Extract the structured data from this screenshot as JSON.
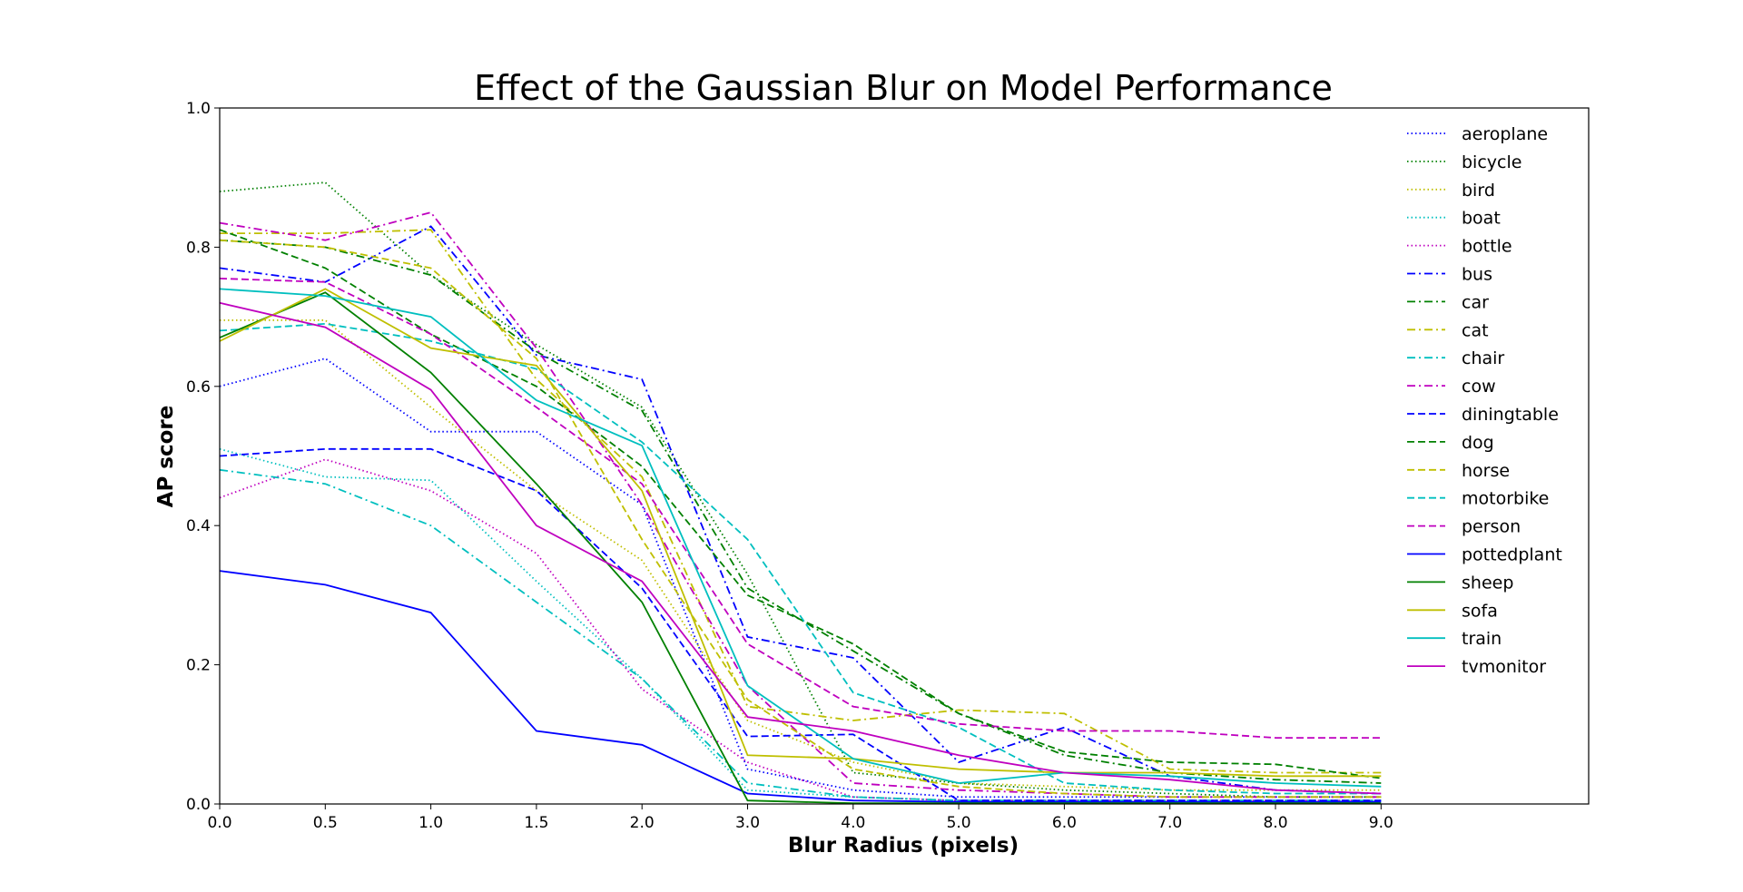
{
  "chart_data": {
    "type": "line",
    "title": "Effect of the Gaussian Blur on Model Performance",
    "xlabel": "Blur Radius (pixels)",
    "ylabel": "AP score",
    "x": [
      0.0,
      0.5,
      1.0,
      1.5,
      2.0,
      3.0,
      4.0,
      5.0,
      6.0,
      7.0,
      8.0,
      9.0
    ],
    "x_tick_labels": [
      "0.0",
      "0.5",
      "1.0",
      "1.5",
      "2.0",
      "3.0",
      "4.0",
      "5.0",
      "6.0",
      "7.0",
      "8.0",
      "9.0"
    ],
    "ylim": [
      0.0,
      1.0
    ],
    "y_ticks": [
      "0.0",
      "0.2",
      "0.4",
      "0.6",
      "0.8",
      "1.0"
    ],
    "grid": false,
    "legend_position": "top-right",
    "series": [
      {
        "name": "aeroplane",
        "color": "#0000ff",
        "style": "dotted",
        "values": [
          0.6,
          0.64,
          0.535,
          0.535,
          0.43,
          0.05,
          0.02,
          0.01,
          0.01,
          0.01,
          0.01,
          0.01
        ]
      },
      {
        "name": "bicycle",
        "color": "#008000",
        "style": "dotted",
        "values": [
          0.88,
          0.893,
          0.76,
          0.66,
          0.57,
          0.33,
          0.045,
          0.03,
          0.02,
          0.015,
          0.01,
          0.01
        ]
      },
      {
        "name": "bird",
        "color": "#bfbf00",
        "style": "dotted",
        "values": [
          0.695,
          0.695,
          0.57,
          0.45,
          0.35,
          0.12,
          0.06,
          0.03,
          0.025,
          0.02,
          0.02,
          0.02
        ]
      },
      {
        "name": "boat",
        "color": "#00bfbf",
        "style": "dotted",
        "values": [
          0.51,
          0.47,
          0.465,
          0.32,
          0.18,
          0.02,
          0.01,
          0.005,
          0.005,
          0.005,
          0.005,
          0.005
        ]
      },
      {
        "name": "bottle",
        "color": "#bf00bf",
        "style": "dotted",
        "values": [
          0.44,
          0.495,
          0.45,
          0.36,
          0.165,
          0.06,
          0.01,
          0.005,
          0.005,
          0.005,
          0.005,
          0.005
        ]
      },
      {
        "name": "bus",
        "color": "#0000ff",
        "style": "dashdot",
        "values": [
          0.77,
          0.75,
          0.83,
          0.645,
          0.61,
          0.24,
          0.21,
          0.06,
          0.11,
          0.04,
          0.02,
          0.015
        ]
      },
      {
        "name": "car",
        "color": "#008000",
        "style": "dashdot",
        "values": [
          0.81,
          0.8,
          0.76,
          0.65,
          0.565,
          0.31,
          0.22,
          0.13,
          0.07,
          0.045,
          0.035,
          0.03
        ]
      },
      {
        "name": "cat",
        "color": "#bfbf00",
        "style": "dashdot",
        "values": [
          0.82,
          0.82,
          0.825,
          0.61,
          0.47,
          0.14,
          0.12,
          0.135,
          0.13,
          0.05,
          0.045,
          0.045
        ]
      },
      {
        "name": "chair",
        "color": "#00bfbf",
        "style": "dashdot",
        "values": [
          0.48,
          0.46,
          0.4,
          0.29,
          0.18,
          0.03,
          0.01,
          0.005,
          0.005,
          0.005,
          0.005,
          0.005
        ]
      },
      {
        "name": "cow",
        "color": "#bf00bf",
        "style": "dashdot",
        "values": [
          0.835,
          0.81,
          0.85,
          0.655,
          0.43,
          0.17,
          0.03,
          0.02,
          0.015,
          0.01,
          0.01,
          0.01
        ]
      },
      {
        "name": "diningtable",
        "color": "#0000ff",
        "style": "dashed",
        "values": [
          0.5,
          0.51,
          0.51,
          0.45,
          0.31,
          0.097,
          0.1,
          0.005,
          0.005,
          0.005,
          0.005,
          0.005
        ]
      },
      {
        "name": "dog",
        "color": "#008000",
        "style": "dashed",
        "values": [
          0.825,
          0.77,
          0.675,
          0.6,
          0.485,
          0.3,
          0.23,
          0.13,
          0.075,
          0.06,
          0.057,
          0.037
        ]
      },
      {
        "name": "horse",
        "color": "#bfbf00",
        "style": "dashed",
        "values": [
          0.81,
          0.8,
          0.77,
          0.64,
          0.38,
          0.15,
          0.05,
          0.025,
          0.015,
          0.01,
          0.01,
          0.01
        ]
      },
      {
        "name": "motorbike",
        "color": "#00bfbf",
        "style": "dashed",
        "values": [
          0.68,
          0.69,
          0.665,
          0.625,
          0.52,
          0.38,
          0.16,
          0.11,
          0.03,
          0.02,
          0.015,
          0.015
        ]
      },
      {
        "name": "person",
        "color": "#bf00bf",
        "style": "dashed",
        "values": [
          0.755,
          0.75,
          0.675,
          0.57,
          0.46,
          0.23,
          0.14,
          0.115,
          0.105,
          0.105,
          0.095,
          0.095
        ]
      },
      {
        "name": "pottedplant",
        "color": "#0000ff",
        "style": "solid",
        "values": [
          0.335,
          0.315,
          0.275,
          0.105,
          0.085,
          0.015,
          0.005,
          0.003,
          0.003,
          0.003,
          0.003,
          0.003
        ]
      },
      {
        "name": "sheep",
        "color": "#008000",
        "style": "solid",
        "values": [
          0.67,
          0.735,
          0.62,
          0.46,
          0.29,
          0.005,
          0.001,
          0.001,
          0.001,
          0.001,
          0.001,
          0.001
        ]
      },
      {
        "name": "sofa",
        "color": "#bfbf00",
        "style": "solid",
        "values": [
          0.665,
          0.74,
          0.655,
          0.63,
          0.45,
          0.07,
          0.065,
          0.05,
          0.045,
          0.045,
          0.04,
          0.04
        ]
      },
      {
        "name": "train",
        "color": "#00bfbf",
        "style": "solid",
        "values": [
          0.74,
          0.73,
          0.7,
          0.58,
          0.515,
          0.17,
          0.065,
          0.03,
          0.045,
          0.04,
          0.03,
          0.025
        ]
      },
      {
        "name": "tvmonitor",
        "color": "#bf00bf",
        "style": "solid",
        "values": [
          0.72,
          0.685,
          0.595,
          0.4,
          0.32,
          0.125,
          0.105,
          0.07,
          0.045,
          0.035,
          0.02,
          0.015
        ]
      }
    ]
  }
}
